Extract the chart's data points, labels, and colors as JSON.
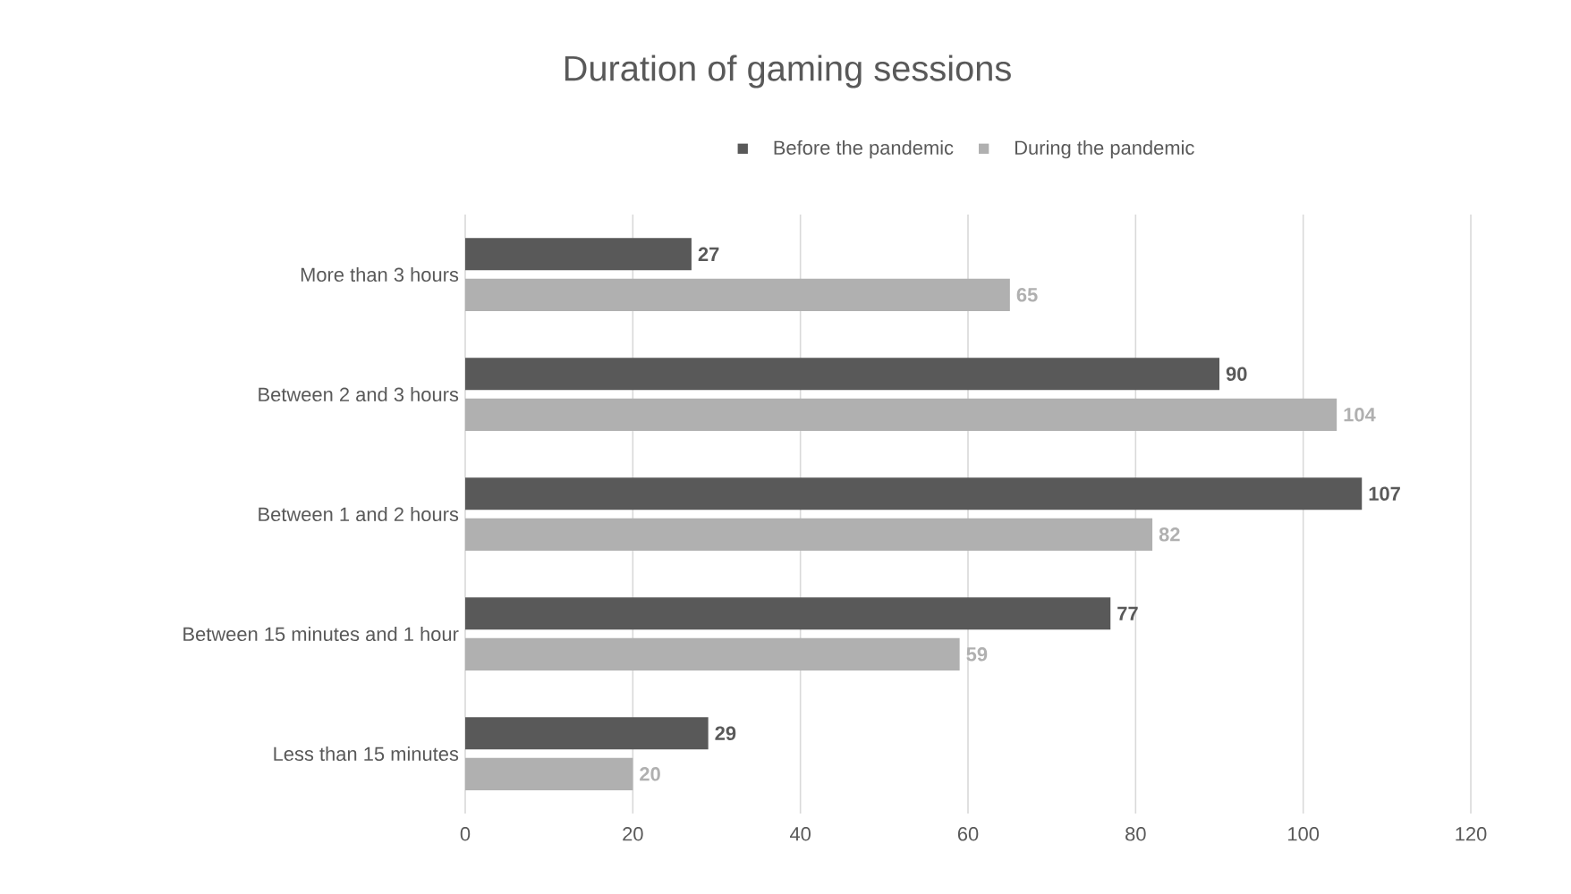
{
  "chart_data": {
    "type": "bar",
    "orientation": "horizontal",
    "title": "Duration of gaming sessions",
    "categories": [
      "More than 3 hours",
      "Between 2 and 3 hours",
      "Between 1 and 2 hours",
      "Between 15 minutes and 1 hour",
      "Less than 15 minutes"
    ],
    "series": [
      {
        "name": "Before the pandemic",
        "color": "#595959",
        "values": [
          27,
          90,
          107,
          77,
          29
        ]
      },
      {
        "name": "During the pandemic",
        "color": "#b0b0b0",
        "values": [
          65,
          104,
          82,
          59,
          20
        ]
      }
    ],
    "xlim": [
      0,
      120
    ],
    "xticks": [
      0,
      20,
      40,
      60,
      80,
      100,
      120
    ],
    "grid": "x",
    "legend": "top",
    "data_labels": true
  }
}
